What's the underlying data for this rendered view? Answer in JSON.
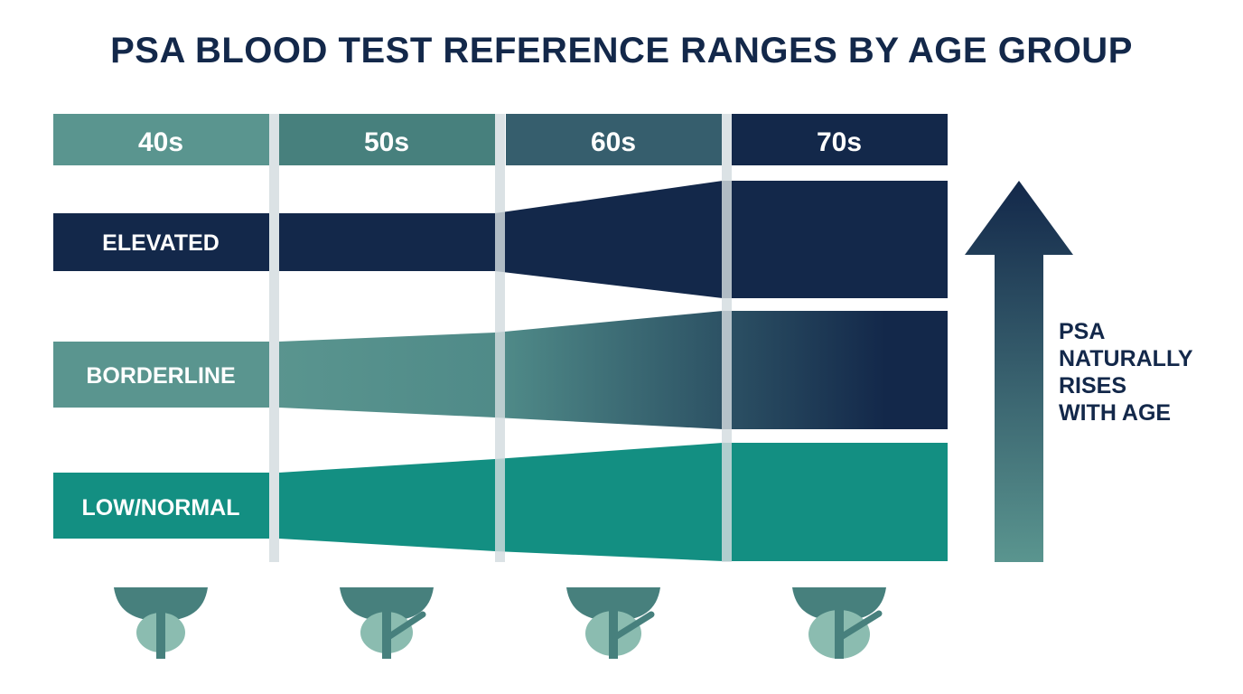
{
  "title": "PSA BLOOD TEST REFERENCE RANGES BY AGE GROUP",
  "age_groups": [
    {
      "label": "40s",
      "color": "#5a958f",
      "text_color": "#ffffff"
    },
    {
      "label": "50s",
      "color": "#47807d",
      "text_color": "#ffffff"
    },
    {
      "label": "60s",
      "color": "#365e6d",
      "text_color": "#ffffff"
    },
    {
      "label": "70s",
      "color": "#13284a",
      "text_color": "#ffffff"
    }
  ],
  "bands": [
    {
      "key": "elevated",
      "label": "ELEVATED",
      "color": "#13284a"
    },
    {
      "key": "borderline",
      "label": "BORDERLINE",
      "color": "#5a958f",
      "color_end": "#13284a"
    },
    {
      "key": "low_normal",
      "label": "LOW/NORMAL",
      "color": "#138f82"
    }
  ],
  "side_note": [
    "PSA",
    "NATURALLY",
    "RISES",
    "WITH AGE"
  ],
  "arrow": {
    "color_top": "#13284a",
    "color_bottom": "#5a958f",
    "meaning": "PSA rises with age"
  },
  "icons": [
    "prostate-icon",
    "prostate-icon",
    "prostate-icon",
    "prostate-icon"
  ],
  "colors": {
    "navy": "#13284a",
    "teal": "#138f82",
    "slate": "#5a958f",
    "divider": "#d3dcdf"
  }
}
